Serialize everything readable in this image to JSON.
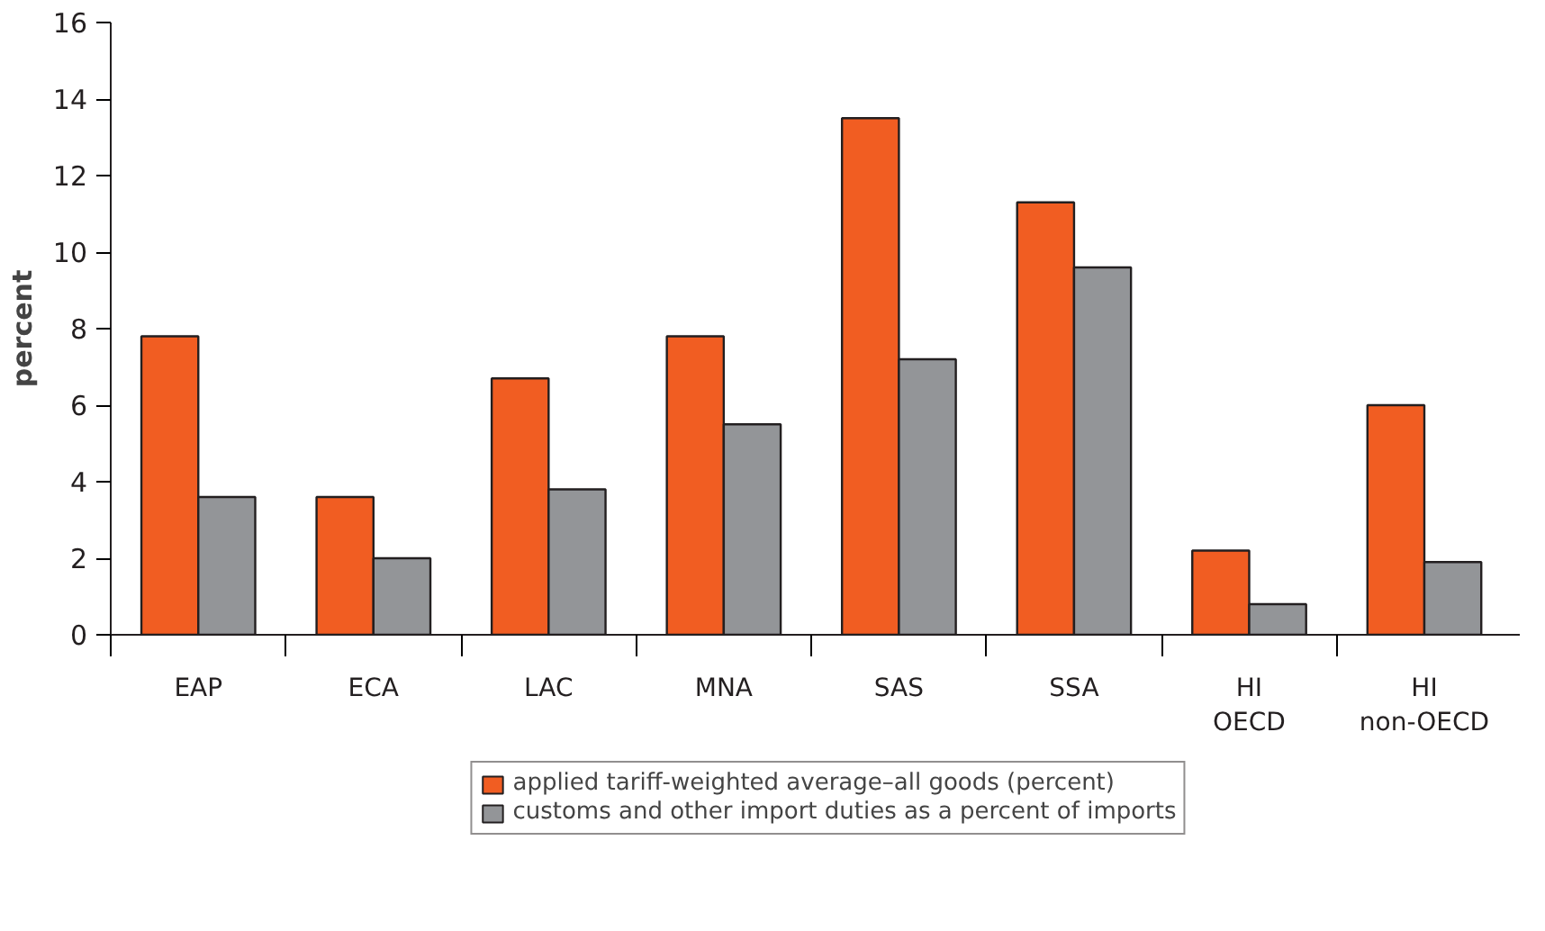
{
  "chart_data": {
    "type": "bar",
    "ylabel": "percent",
    "categories": [
      "EAP",
      "ECA",
      "LAC",
      "MNA",
      "SAS",
      "SSA",
      "HI\nOECD",
      "HI\nnon-OECD"
    ],
    "series": [
      {
        "name": "applied tariff-weighted average–all goods (percent)",
        "color": "#f15d22",
        "values": [
          7.8,
          3.6,
          6.7,
          7.8,
          13.5,
          11.3,
          2.2,
          6.0
        ]
      },
      {
        "name": "customs and other import duties as a percent of imports",
        "color": "#939598",
        "values": [
          3.6,
          2.0,
          3.8,
          5.5,
          7.2,
          9.6,
          0.8,
          1.9
        ]
      }
    ],
    "ylim": [
      0,
      16
    ],
    "yticks": [
      0,
      2,
      4,
      6,
      8,
      10,
      12,
      14,
      16
    ],
    "grid": false,
    "legend": "bottom"
  }
}
